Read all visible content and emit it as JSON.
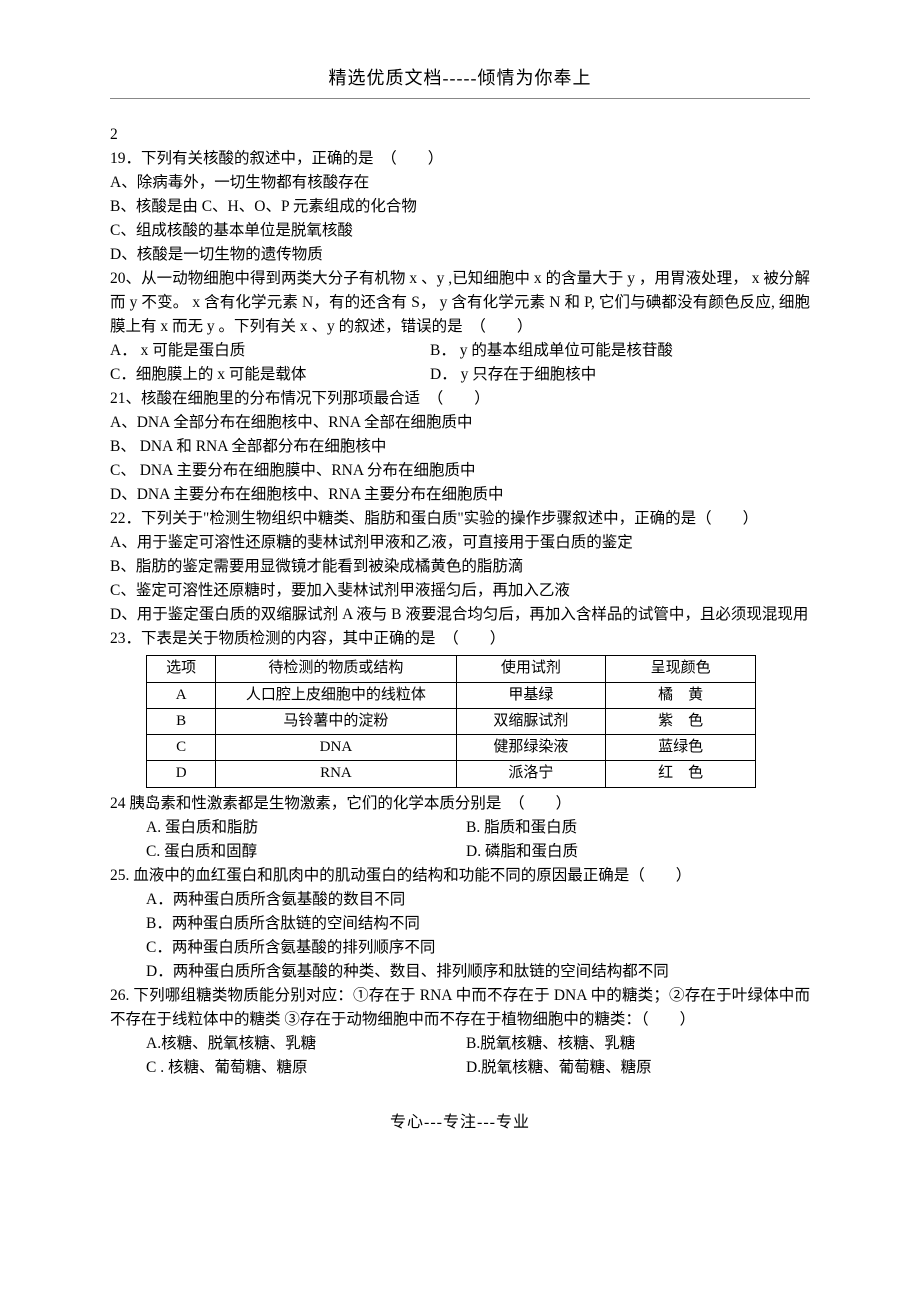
{
  "header": "精选优质文档-----倾情为你奉上",
  "footer": "专心---专注---专业",
  "lead": "2",
  "q19": {
    "stem": "19．下列有关核酸的叙述中，正确的是　（　　）",
    "a": "A、除病毒外，一切生物都有核酸存在",
    "b": "B、核酸是由 C、H、O、P 元素组成的化合物",
    "c": "C、组成核酸的基本单位是脱氧核酸",
    "d": "D、核酸是一切生物的遗传物质"
  },
  "q20": {
    "stem": "20、从一动物细胞中得到两类大分子有机物 x 、y ,已知细胞中 x 的含量大于 y ，用胃液处理， x 被分解而 y 不变。 x 含有化学元素 N，有的还含有 S， y 含有化学元素 N 和 P, 它们与碘都没有颜色反应, 细胞膜上有 x 而无 y 。下列有关 x 、y 的叙述，错误的是　（　　）",
    "a": "A． x 可能是蛋白质",
    "b": "B． y 的基本组成单位可能是核苷酸",
    "c": "C．细胞膜上的 x 可能是载体",
    "d": "D． y 只存在于细胞核中"
  },
  "q21": {
    "stem": "21、核酸在细胞里的分布情况下列那项最合适　（　　）",
    "a": "A、DNA 全部分布在细胞核中、RNA 全部在细胞质中",
    "b": "B、 DNA 和 RNA 全部都分布在细胞核中",
    "c": "C、 DNA 主要分布在细胞膜中、RNA 分布在细胞质中",
    "d": "D、DNA 主要分布在细胞核中、RNA 主要分布在细胞质中"
  },
  "q22": {
    "stem": "22．下列关于\"检测生物组织中糖类、脂肪和蛋白质\"实验的操作步骤叙述中，正确的是（　　）",
    "a": "A、用于鉴定可溶性还原糖的斐林试剂甲液和乙液，可直接用于蛋白质的鉴定",
    "b": "B、脂肪的鉴定需要用显微镜才能看到被染成橘黄色的脂肪滴",
    "c": "C、鉴定可溶性还原糖时，要加入斐林试剂甲液摇匀后，再加入乙液",
    "d": "D、用于鉴定蛋白质的双缩脲试剂 A 液与 B 液要混合均匀后，再加入含样品的试管中，且必须现混现用"
  },
  "q23": {
    "stem": "23．下表是关于物质检测的内容，其中正确的是　（　　）",
    "table": {
      "headers": [
        "选项",
        "待检测的物质或结构",
        "使用试剂",
        "呈现颜色"
      ],
      "rows": [
        [
          "A",
          "人口腔上皮细胞中的线粒体",
          "甲基绿",
          "橘　黄"
        ],
        [
          "B",
          "马铃薯中的淀粉",
          "双缩脲试剂",
          "紫　色"
        ],
        [
          "C",
          "DNA",
          "健那绿染液",
          "蓝绿色"
        ],
        [
          "D",
          "RNA",
          "派洛宁",
          "红　色"
        ]
      ]
    }
  },
  "q24": {
    "stem": "24 胰岛素和性激素都是生物激素，它们的化学本质分别是　（　　）",
    "a": "A. 蛋白质和脂肪",
    "b": "B. 脂质和蛋白质",
    "c": "C. 蛋白质和固醇",
    "d": "D. 磷脂和蛋白质"
  },
  "q25": {
    "stem": "25. 血液中的血红蛋白和肌肉中的肌动蛋白的结构和功能不同的原因最正确是（　　）",
    "a": "A．两种蛋白质所含氨基酸的数目不同",
    "b": "B．两种蛋白质所含肽链的空间结构不同",
    "c": "C．两种蛋白质所含氨基酸的排列顺序不同",
    "d": "D．两种蛋白质所含氨基酸的种类、数目、排列顺序和肽链的空间结构都不同"
  },
  "q26": {
    "stem": "26. 下列哪组糖类物质能分别对应：①存在于 RNA 中而不存在于 DNA 中的糖类；②存在于叶绿体中而不存在于线粒体中的糖类 ③存在于动物细胞中而不存在于植物细胞中的糖类：（　　）",
    "a": "A.核糖、脱氧核糖、乳糖",
    "b": "B.脱氧核糖、核糖、乳糖",
    "c": "C . 核糖、葡萄糖、糖原",
    "d": "D.脱氧核糖、葡萄糖、糖原"
  }
}
